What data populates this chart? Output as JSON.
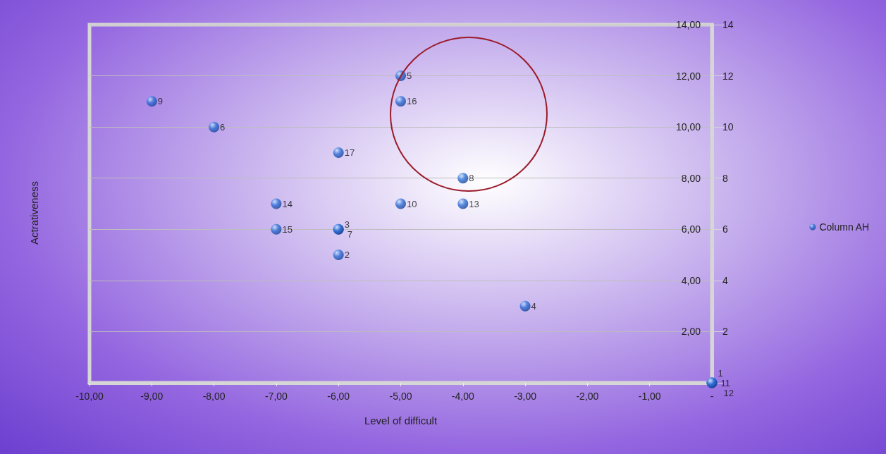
{
  "chart_data": {
    "type": "scatter",
    "xlabel": "Level of difficult",
    "ylabel": "Actrativeness",
    "x": [
      0,
      -6,
      -6,
      -3,
      -5,
      -8,
      -6,
      -4,
      -9,
      -5,
      0,
      0,
      -4,
      -7,
      -7,
      -5,
      -6
    ],
    "series": [
      {
        "name": "Column AH",
        "color": "#2f6fd6",
        "values": [
          0,
          5,
          6,
          3,
          12,
          10,
          6,
          8,
          11,
          7,
          0,
          0,
          7,
          7,
          6,
          11,
          9
        ]
      }
    ],
    "value_labels": [
      "1",
      "2",
      "3",
      "4",
      "5",
      "6",
      "7",
      "8",
      "9",
      "10",
      "11",
      "12",
      "13",
      "14",
      "15",
      "16",
      "17"
    ],
    "xlim": [
      -10,
      0
    ],
    "xticks": [
      {
        "value": -10,
        "label": "-10,00"
      },
      {
        "value": -9,
        "label": "-9,00"
      },
      {
        "value": -8,
        "label": "-8,00"
      },
      {
        "value": -7,
        "label": "-7,00"
      },
      {
        "value": -6,
        "label": "-6,00"
      },
      {
        "value": -5,
        "label": "-5,00"
      },
      {
        "value": -4,
        "label": "-4,00"
      },
      {
        "value": -3,
        "label": "-3,00"
      },
      {
        "value": -2,
        "label": "-2,00"
      },
      {
        "value": -1,
        "label": "-1,00"
      },
      {
        "value": 0,
        "label": "-"
      }
    ],
    "ylim": [
      0,
      14
    ],
    "yticks": [
      {
        "value": 0,
        "label": null
      },
      {
        "value": 2,
        "label": "2,00"
      },
      {
        "value": 4,
        "label": "4,00"
      },
      {
        "value": 6,
        "label": "6,00"
      },
      {
        "value": 8,
        "label": "8,00"
      },
      {
        "value": 10,
        "label": "10,00"
      },
      {
        "value": 12,
        "label": "12,00"
      },
      {
        "value": 14,
        "label": "14,00"
      }
    ],
    "y2lim": [
      0,
      14
    ],
    "y2ticks": [
      {
        "value": 0,
        "label": null
      },
      2,
      4,
      6,
      8,
      10,
      12,
      14
    ],
    "grid": "y",
    "legend": "right",
    "marker": "circle"
  }
}
